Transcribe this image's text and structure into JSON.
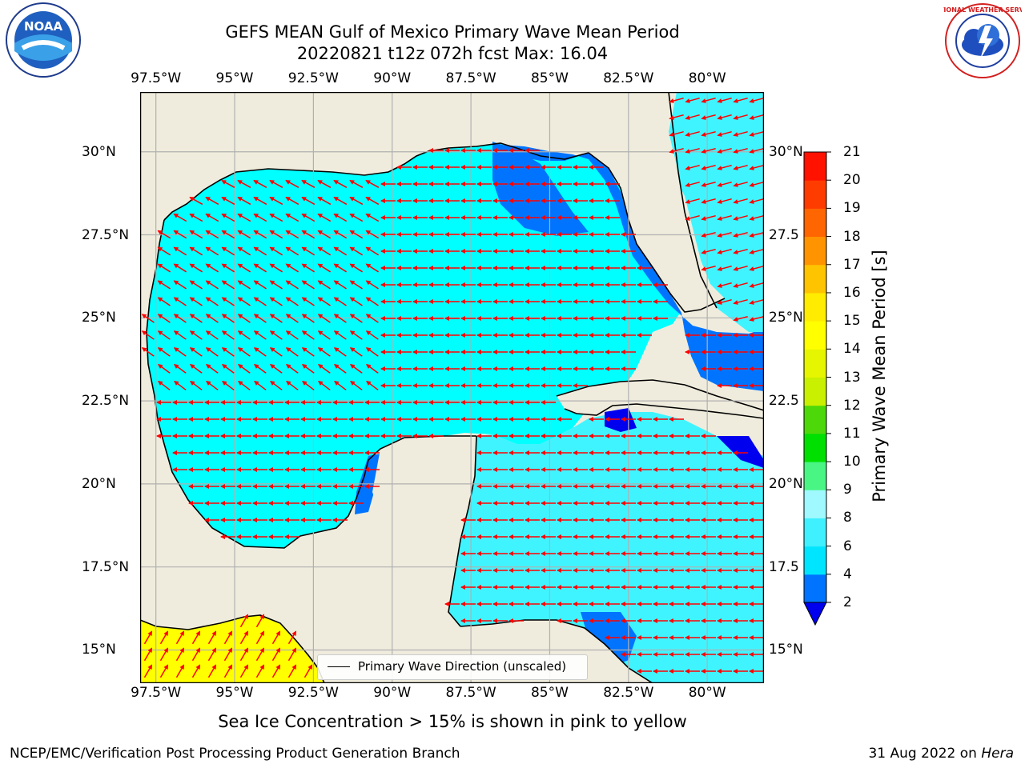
{
  "title": {
    "line1": "GEFS MEAN Gulf of Mexico Primary Wave Mean Period",
    "line2": "20220821 t12z 072h fcst   Max: 16.04"
  },
  "axes": {
    "longitude_ticks": [
      "97.5°W",
      "95°W",
      "92.5°W",
      "90°W",
      "87.5°W",
      "85°W",
      "82.5°W",
      "80°W"
    ],
    "latitude_ticks_left": [
      "30°N",
      "27.5°N",
      "25°N",
      "22.5°N",
      "20°N",
      "17.5°N",
      "15°N"
    ],
    "latitude_ticks_right": [
      "30°N",
      "27.5",
      "25°N",
      "22.5",
      "20°N",
      "17.5",
      "15°N"
    ],
    "lon_range": [
      -98,
      -78.2
    ],
    "lat_range": [
      14,
      31.8
    ],
    "grid": true
  },
  "colorbar": {
    "label": "Primary Wave Mean Period [s]",
    "ticks": [
      "21",
      "20",
      "19",
      "18",
      "17",
      "16",
      "15",
      "14",
      "13",
      "12",
      "11",
      "10",
      "9",
      "8",
      "6",
      "4",
      "2"
    ],
    "levels": [
      2,
      4,
      6,
      8,
      9,
      10,
      11,
      12,
      13,
      14,
      15,
      16,
      17,
      18,
      19,
      20,
      21
    ],
    "colors": [
      "#0074ff",
      "#00e5ff",
      "#3ff0ff",
      "#9ff9ff",
      "#49f583",
      "#00e000",
      "#4dd80a",
      "#c8f000",
      "#e6f500",
      "#ffff00",
      "#ffec00",
      "#ffc400",
      "#ff9400",
      "#ff6500",
      "#ff3c00",
      "#ff1200"
    ],
    "under_color": "#0000ee",
    "extend": "min"
  },
  "map_colors": {
    "land": "#efecdd",
    "ocean_4_6": "#00ffff",
    "ocean_6_8": "#40f4ff",
    "ocean_2_4": "#0074ff",
    "ocean_lt_2": "#0000ee",
    "ice": "#ffff00",
    "arrow": "#ff0000",
    "coast": "#000000",
    "grid": "#b0b0b0"
  },
  "legend": {
    "label": "Primary Wave Direction (unscaled)"
  },
  "caption": "Sea Ice Concentration > 15% is shown in pink to yellow",
  "footer": {
    "left": "NCEP/EMC/Verification Post Processing Product Generation Branch",
    "date": "31 Aug 2022 on",
    "host": "Hera"
  },
  "logos": {
    "left_text": "NOAA",
    "right_text": "NATIONAL WEATHER SERVICE"
  }
}
